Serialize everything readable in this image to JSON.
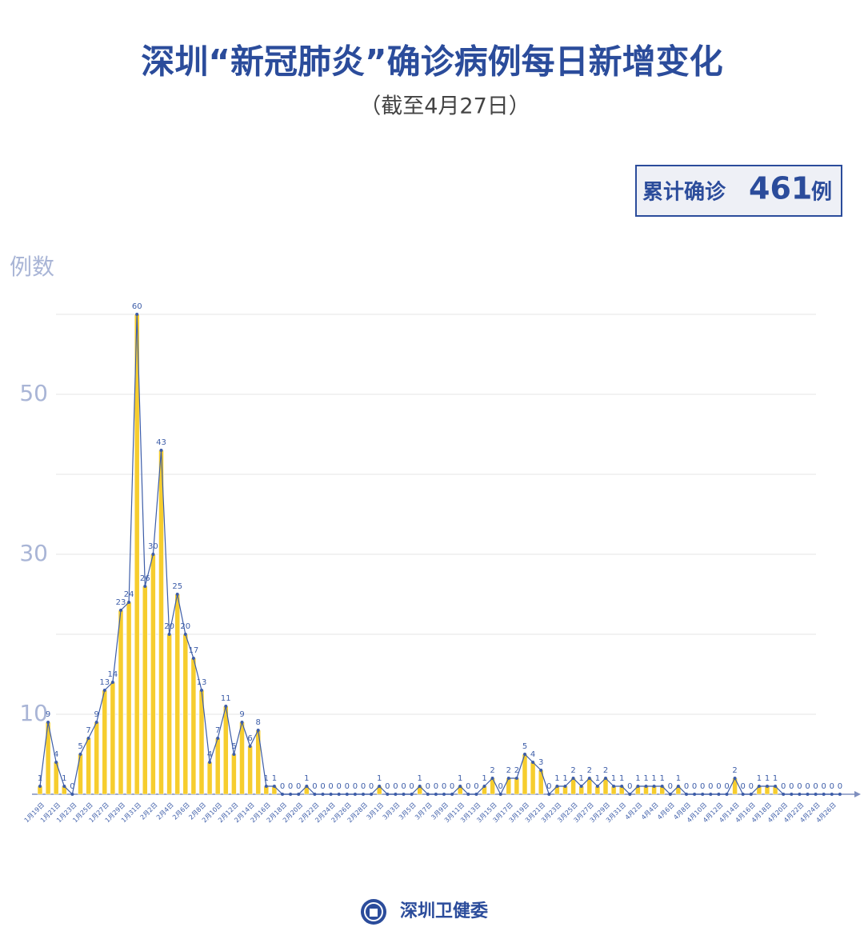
{
  "chart_data": {
    "type": "line",
    "title": "深圳“新冠肺炎”确诊病例每日新增变化",
    "subtitle": "（截至4月27日）",
    "total": {
      "label": "累计确诊",
      "value": 461,
      "unit": "例"
    },
    "y_label": "例数",
    "categories": [
      "1月19日",
      null,
      "1月21日",
      null,
      "1月23日",
      null,
      "1月25日",
      null,
      "1月27日",
      null,
      "1月29日",
      null,
      "1月31日",
      null,
      "2月2日",
      null,
      "2月4日",
      null,
      "2月6日",
      null,
      "2月8日",
      null,
      "2月10日",
      null,
      "2月12日",
      null,
      "2月14日",
      null,
      "2月16日",
      null,
      "2月18日",
      null,
      "2月20日",
      null,
      "2月22日",
      null,
      "2月24日",
      null,
      "2月26日",
      null,
      "2月28日",
      null,
      "3月1日",
      null,
      "3月3日",
      null,
      "3月5日",
      null,
      "3月7日",
      null,
      "3月9日",
      null,
      "3月11日",
      null,
      "3月13日",
      null,
      "3月15日",
      null,
      "3月17日",
      null,
      "3月19日",
      null,
      "3月21日",
      null,
      "3月23日",
      null,
      "3月25日",
      null,
      "3月27日",
      null,
      "3月29日",
      null,
      "3月31日",
      null,
      "4月2日",
      null,
      "4月4日",
      null,
      "4月6日",
      null,
      "4月8日",
      null,
      "4月10日",
      null,
      "4月12日",
      null,
      "4月14日",
      null,
      "4月16日",
      null,
      "4月18日",
      null,
      "4月20日",
      null,
      "4月22日",
      null,
      "4月24日",
      null,
      "4月26日",
      null
    ],
    "values": [
      1,
      9,
      4,
      1,
      0,
      5,
      7,
      9,
      13,
      14,
      23,
      24,
      60,
      26,
      30,
      43,
      20,
      25,
      20,
      17,
      13,
      4,
      7,
      11,
      5,
      9,
      6,
      8,
      1,
      1,
      0,
      0,
      0,
      1,
      0,
      0,
      0,
      0,
      0,
      0,
      0,
      0,
      1,
      0,
      0,
      0,
      0,
      1,
      0,
      0,
      0,
      0,
      1,
      0,
      0,
      1,
      2,
      0,
      2,
      2,
      5,
      4,
      3,
      0,
      1,
      1,
      2,
      1,
      2,
      1,
      2,
      1,
      1,
      0,
      1,
      1,
      1,
      1,
      0,
      1,
      0,
      0,
      0,
      0,
      0,
      0,
      2,
      0,
      0,
      1,
      1,
      1,
      0,
      0,
      0,
      0,
      0,
      0,
      0,
      0
    ],
    "ylim": [
      0,
      60
    ],
    "yticks": [
      10,
      30,
      50
    ],
    "gridlines": [
      20,
      40,
      60
    ],
    "line_color": "#3d5da8",
    "bar_color": "#f6cd2e"
  },
  "footer": "深圳卫健委"
}
